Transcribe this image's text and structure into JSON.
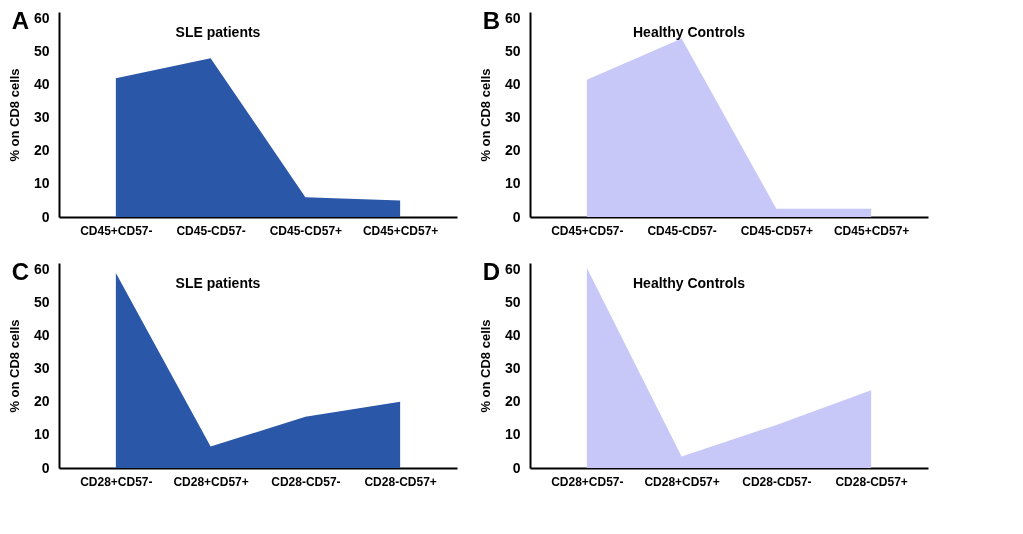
{
  "chart_data": [
    {
      "type": "area",
      "title": "SLE patients",
      "ylabel": "% on CD8 cells",
      "categories": [
        "CD45+CD57-",
        "CD45-CD57-",
        "CD45-CD57+",
        "CD45+CD57+"
      ],
      "values": [
        42,
        48,
        6,
        5
      ],
      "color": "#2a57a8",
      "ylim": [
        0,
        62
      ],
      "yticks": [
        0,
        10,
        20,
        30,
        40,
        50,
        60
      ],
      "annotations": [
        "A"
      ]
    },
    {
      "type": "area",
      "title": "Healthy Controls",
      "ylabel": "% on CD8 cells",
      "categories": [
        "CD45+CD57-",
        "CD45-CD57-",
        "CD45-CD57+",
        "CD45+CD57+"
      ],
      "values": [
        41.5,
        54,
        2.5,
        2.5
      ],
      "color": "#c8c8f8",
      "ylim": [
        0,
        62
      ],
      "yticks": [
        0,
        10,
        20,
        30,
        40,
        50,
        60
      ],
      "annotations": [
        "B"
      ]
    },
    {
      "type": "area",
      "title": "SLE patients",
      "ylabel": "% on CD8 cells",
      "categories": [
        "CD28+CD57-",
        "CD28+CD57+",
        "CD28-CD57-",
        "CD28-CD57+"
      ],
      "values": [
        59,
        6.5,
        15.5,
        20
      ],
      "color": "#2a57a8",
      "ylim": [
        0,
        62
      ],
      "yticks": [
        0,
        10,
        20,
        30,
        40,
        50,
        60
      ],
      "annotations": [
        "C"
      ]
    },
    {
      "type": "area",
      "title": "Healthy Controls",
      "ylabel": "% on CD8 cells",
      "categories": [
        "CD28+CD57-",
        "CD28+CD57+",
        "CD28-CD57-",
        "CD28-CD57+"
      ],
      "values": [
        60.5,
        3.5,
        13,
        23.5
      ],
      "color": "#c8c8f8",
      "ylim": [
        0,
        62
      ],
      "yticks": [
        0,
        10,
        20,
        30,
        40,
        50,
        60
      ],
      "annotations": [
        "D"
      ]
    }
  ]
}
